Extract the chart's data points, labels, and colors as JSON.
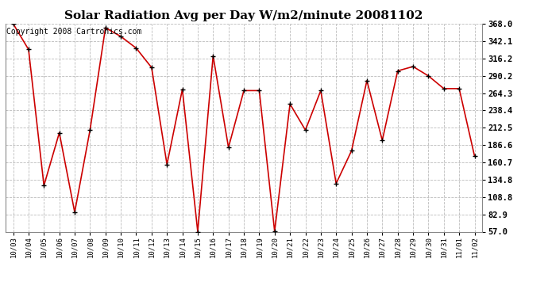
{
  "title": "Solar Radiation Avg per Day W/m2/minute 20081102",
  "copyright_text": "Copyright 2008 Cartronics.com",
  "labels": [
    "10/03",
    "10/04",
    "10/05",
    "10/06",
    "10/07",
    "10/08",
    "10/09",
    "10/10",
    "10/11",
    "10/12",
    "10/13",
    "10/14",
    "10/15",
    "10/16",
    "10/17",
    "10/18",
    "10/19",
    "10/20",
    "10/21",
    "10/22",
    "10/23",
    "10/24",
    "10/25",
    "10/26",
    "10/27",
    "10/28",
    "10/29",
    "10/30",
    "10/31",
    "11/01",
    "11/02"
  ],
  "values": [
    368.0,
    329.5,
    126.0,
    205.0,
    86.0,
    209.5,
    362.0,
    349.0,
    331.5,
    302.5,
    157.5,
    270.0,
    57.0,
    320.0,
    183.0,
    268.0,
    268.0,
    57.5,
    248.0,
    209.0,
    268.0,
    129.0,
    178.0,
    283.0,
    193.5,
    297.5,
    304.0,
    290.0,
    271.0,
    271.0,
    170.0
  ],
  "ylim": [
    57.0,
    368.0
  ],
  "yticks": [
    57.0,
    82.9,
    108.8,
    134.8,
    160.7,
    186.6,
    212.5,
    238.4,
    264.3,
    290.2,
    316.2,
    342.1,
    368.0
  ],
  "line_color": "#cc0000",
  "marker_color": "#000000",
  "bg_color": "#ffffff",
  "grid_color": "#bbbbbb",
  "title_fontsize": 11,
  "copyright_fontsize": 7,
  "xtick_fontsize": 6.5,
  "ytick_fontsize": 7.5
}
